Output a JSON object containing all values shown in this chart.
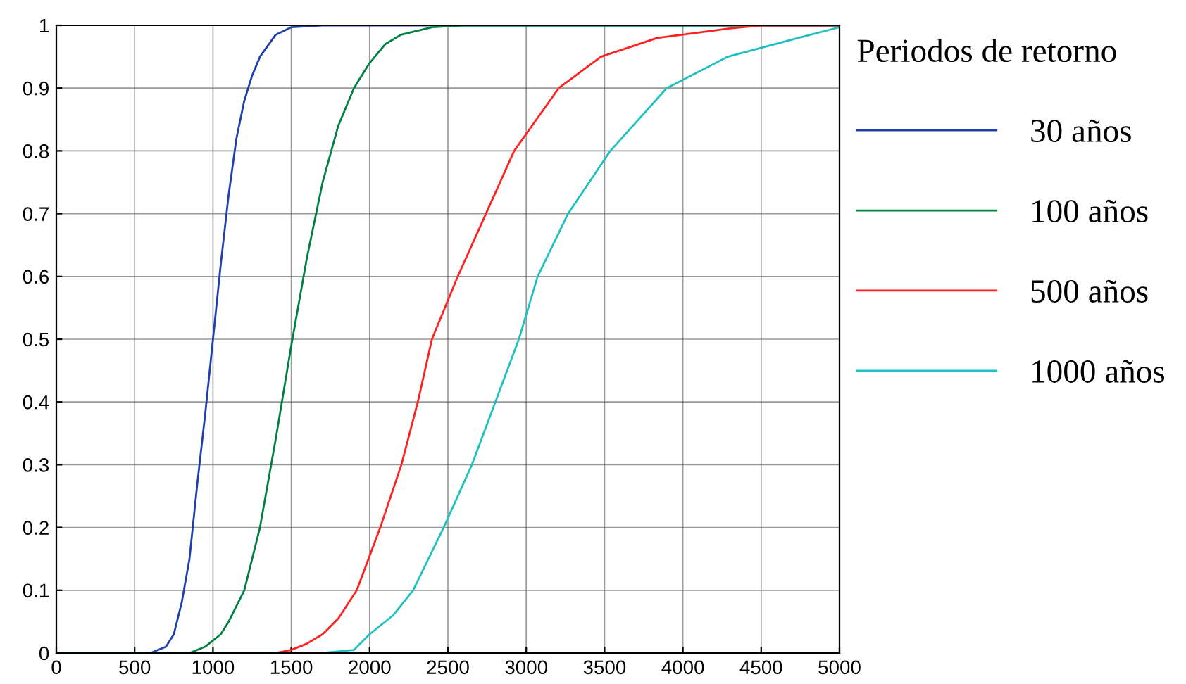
{
  "chart_data": {
    "type": "line",
    "legend_title": "Periodos de retorno",
    "legend": "right",
    "grid": true,
    "xlim": [
      0,
      5000
    ],
    "ylim": [
      0,
      1
    ],
    "xticks": [
      0,
      500,
      1000,
      1500,
      2000,
      2500,
      3000,
      3500,
      4000,
      4500,
      5000
    ],
    "yticks": [
      0,
      0.1,
      0.2,
      0.3,
      0.4,
      0.5,
      0.6,
      0.7,
      0.8,
      0.9,
      1
    ],
    "series": [
      {
        "name": "30 años",
        "color": "#2040b0",
        "x": [
          0,
          600,
          700,
          750,
          800,
          850,
          900,
          950,
          1000,
          1050,
          1100,
          1150,
          1200,
          1250,
          1300,
          1400,
          1500,
          1700,
          5000
        ],
        "values": [
          0,
          0,
          0.01,
          0.03,
          0.08,
          0.15,
          0.27,
          0.38,
          0.5,
          0.62,
          0.73,
          0.82,
          0.88,
          0.92,
          0.95,
          0.985,
          0.997,
          1,
          1
        ]
      },
      {
        "name": "100 años",
        "color": "#008040",
        "x": [
          0,
          850,
          950,
          1050,
          1100,
          1200,
          1300,
          1400,
          1500,
          1600,
          1700,
          1800,
          1900,
          2000,
          2100,
          2200,
          2400,
          2600,
          5000
        ],
        "values": [
          0,
          0,
          0.01,
          0.03,
          0.05,
          0.1,
          0.2,
          0.34,
          0.49,
          0.63,
          0.75,
          0.84,
          0.9,
          0.94,
          0.97,
          0.985,
          0.997,
          1,
          1
        ]
      },
      {
        "name": "500 años",
        "color": "#ff2020",
        "x": [
          0,
          1400,
          1500,
          1600,
          1700,
          1800,
          1918,
          2068,
          2203,
          2308,
          2398,
          2563,
          2743,
          2923,
          3208,
          3477,
          3837,
          4300,
          4500,
          5000
        ],
        "values": [
          0,
          0,
          0.005,
          0.015,
          0.03,
          0.055,
          0.1,
          0.2,
          0.3,
          0.4,
          0.5,
          0.6,
          0.7,
          0.8,
          0.9,
          0.95,
          0.98,
          0.995,
          1,
          1
        ]
      },
      {
        "name": "1000 años",
        "color": "#20c0c0",
        "x": [
          0,
          1700,
          1900,
          2000,
          2150,
          2278,
          2473,
          2653,
          2803,
          2953,
          3073,
          3267,
          3537,
          3897,
          4287,
          4737,
          5000
        ],
        "values": [
          0,
          0,
          0.005,
          0.03,
          0.06,
          0.1,
          0.2,
          0.3,
          0.4,
          0.5,
          0.6,
          0.7,
          0.8,
          0.9,
          0.95,
          0.98,
          0.997
        ]
      }
    ]
  }
}
